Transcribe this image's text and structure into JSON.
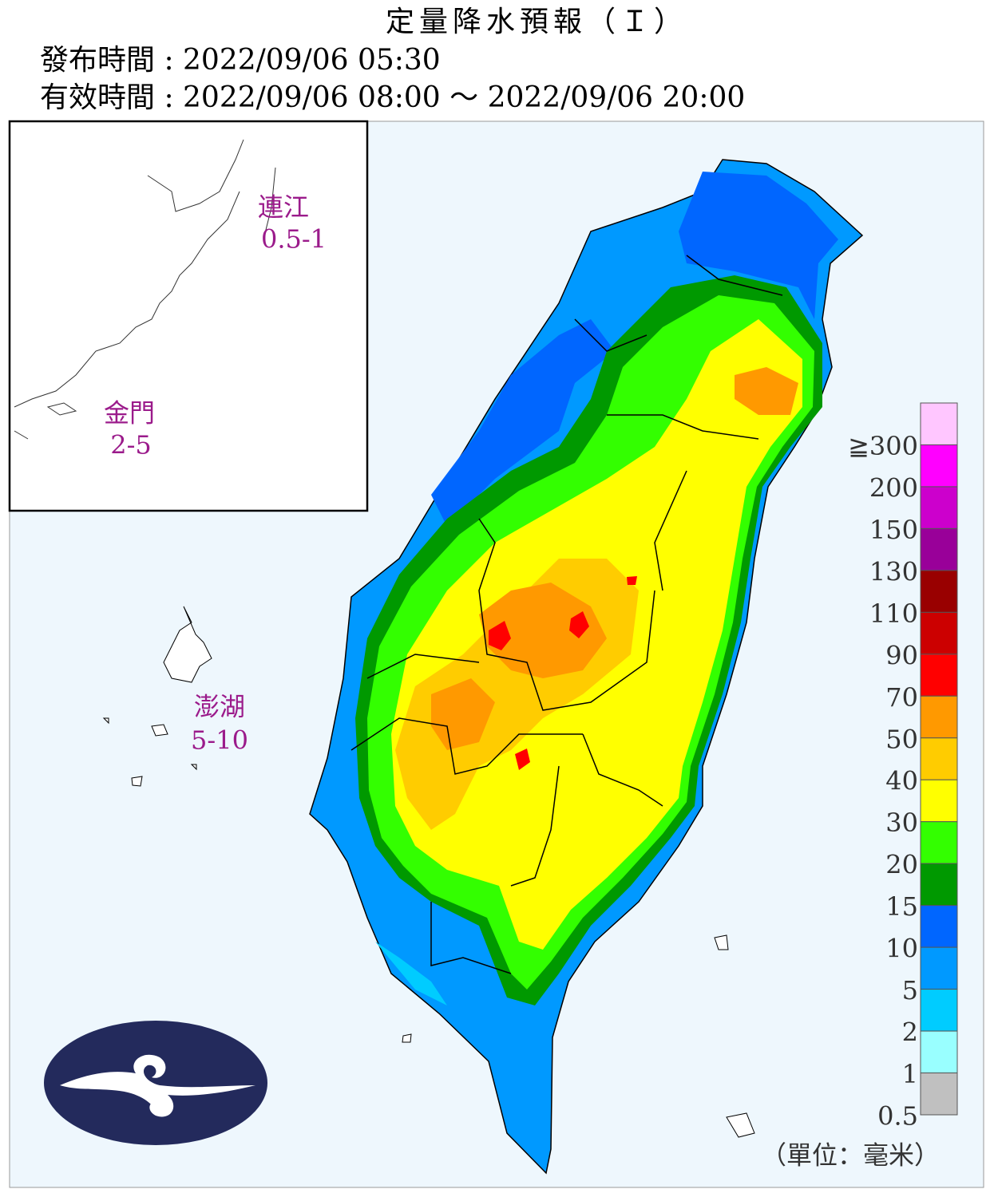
{
  "header": {
    "title": "定量降水預報（Ｉ）",
    "issued": "發布時間 : 2022/09/06 05:30",
    "valid": "有效時間 : 2022/09/06 08:00 ～ 2022/09/06 20:00"
  },
  "regions": [
    {
      "name": "連江",
      "range": "0.5-1"
    },
    {
      "name": "金門",
      "range": "2-5"
    },
    {
      "name": "澎湖",
      "range": "5-10"
    }
  ],
  "legend": {
    "items": [
      {
        "label": "≧300",
        "color": "#ffc6ff"
      },
      {
        "label": "200",
        "color": "#ff00ff"
      },
      {
        "label": "150",
        "color": "#cc00cc"
      },
      {
        "label": "130",
        "color": "#990099"
      },
      {
        "label": "110",
        "color": "#990000"
      },
      {
        "label": "90",
        "color": "#cc0000"
      },
      {
        "label": "70",
        "color": "#ff0000"
      },
      {
        "label": "50",
        "color": "#ff9900"
      },
      {
        "label": "40",
        "color": "#ffcc00"
      },
      {
        "label": "30",
        "color": "#ffff00"
      },
      {
        "label": "20",
        "color": "#33ff00"
      },
      {
        "label": "15",
        "color": "#009900"
      },
      {
        "label": "10",
        "color": "#0066ff"
      },
      {
        "label": "5",
        "color": "#0099ff"
      },
      {
        "label": "2",
        "color": "#00ccff"
      },
      {
        "label": "1",
        "color": "#99ffff"
      },
      {
        "label": "0.5",
        "color": "#c0c0c0"
      }
    ],
    "unit": "（單位：毫米）"
  }
}
